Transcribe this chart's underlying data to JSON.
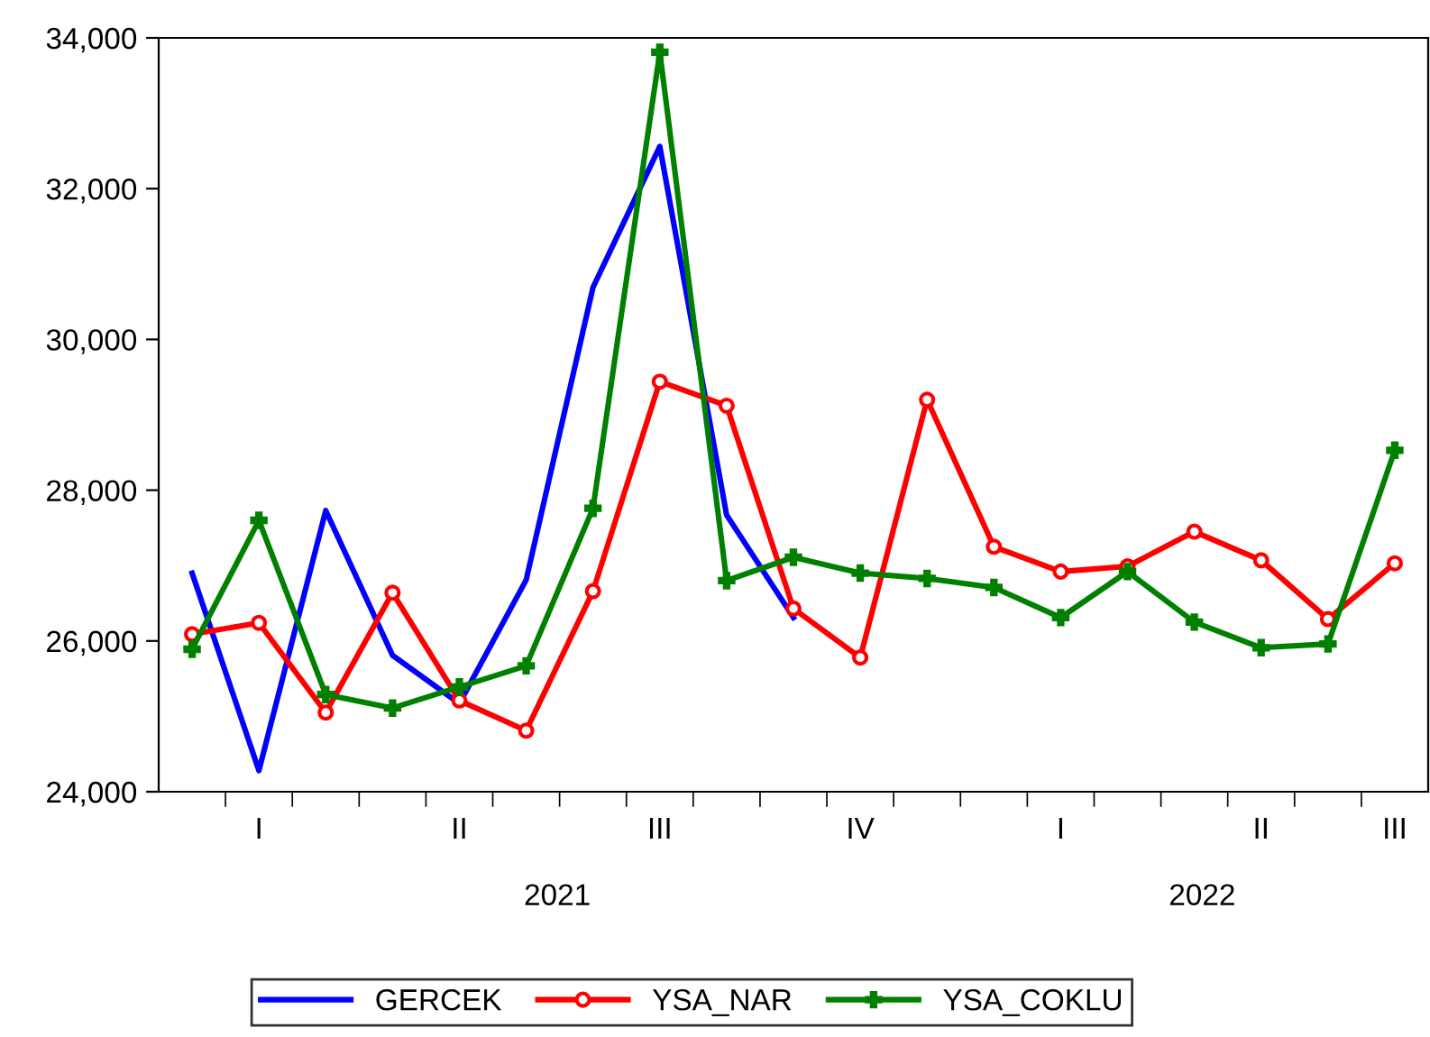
{
  "chart_data": {
    "type": "line",
    "categories": [
      null,
      "I",
      null,
      null,
      "II",
      null,
      null,
      "III",
      null,
      null,
      "IV",
      null,
      null,
      "I",
      null,
      null,
      "II",
      null,
      "III"
    ],
    "series": [
      {
        "name": "GERCEK",
        "color": "#0000ff",
        "marker": "none",
        "values": [
          26900,
          24280,
          27730,
          25810,
          25170,
          26810,
          30690,
          32560,
          27670,
          26310,
          null,
          null,
          null,
          null,
          null,
          null,
          null,
          null,
          null
        ]
      },
      {
        "name": "YSA_NAR",
        "color": "#ff0000",
        "marker": "circle",
        "values": [
          26090,
          26240,
          25050,
          26640,
          25210,
          24810,
          26660,
          29440,
          29120,
          26430,
          25780,
          29200,
          27250,
          26920,
          26990,
          27450,
          27070,
          26290,
          27030
        ]
      },
      {
        "name": "YSA_COKLU",
        "color": "#008000",
        "marker": "cross",
        "values": [
          25890,
          27600,
          25290,
          25110,
          25390,
          25670,
          27760,
          33810,
          26800,
          27110,
          26900,
          26830,
          26710,
          26310,
          26920,
          26250,
          25910,
          25960,
          28530
        ]
      }
    ],
    "ylim": [
      24000,
      34000
    ],
    "yticks": [
      {
        "value": 24000,
        "label": "24,000"
      },
      {
        "value": 26000,
        "label": "26,000"
      },
      {
        "value": 28000,
        "label": "28,000"
      },
      {
        "value": 30000,
        "label": "30,000"
      },
      {
        "value": 32000,
        "label": "32,000"
      },
      {
        "value": 34000,
        "label": "34,000"
      }
    ],
    "annotations": [
      "2021",
      "2022"
    ],
    "legend": "bottom",
    "grid": false,
    "line_style": "solid"
  }
}
